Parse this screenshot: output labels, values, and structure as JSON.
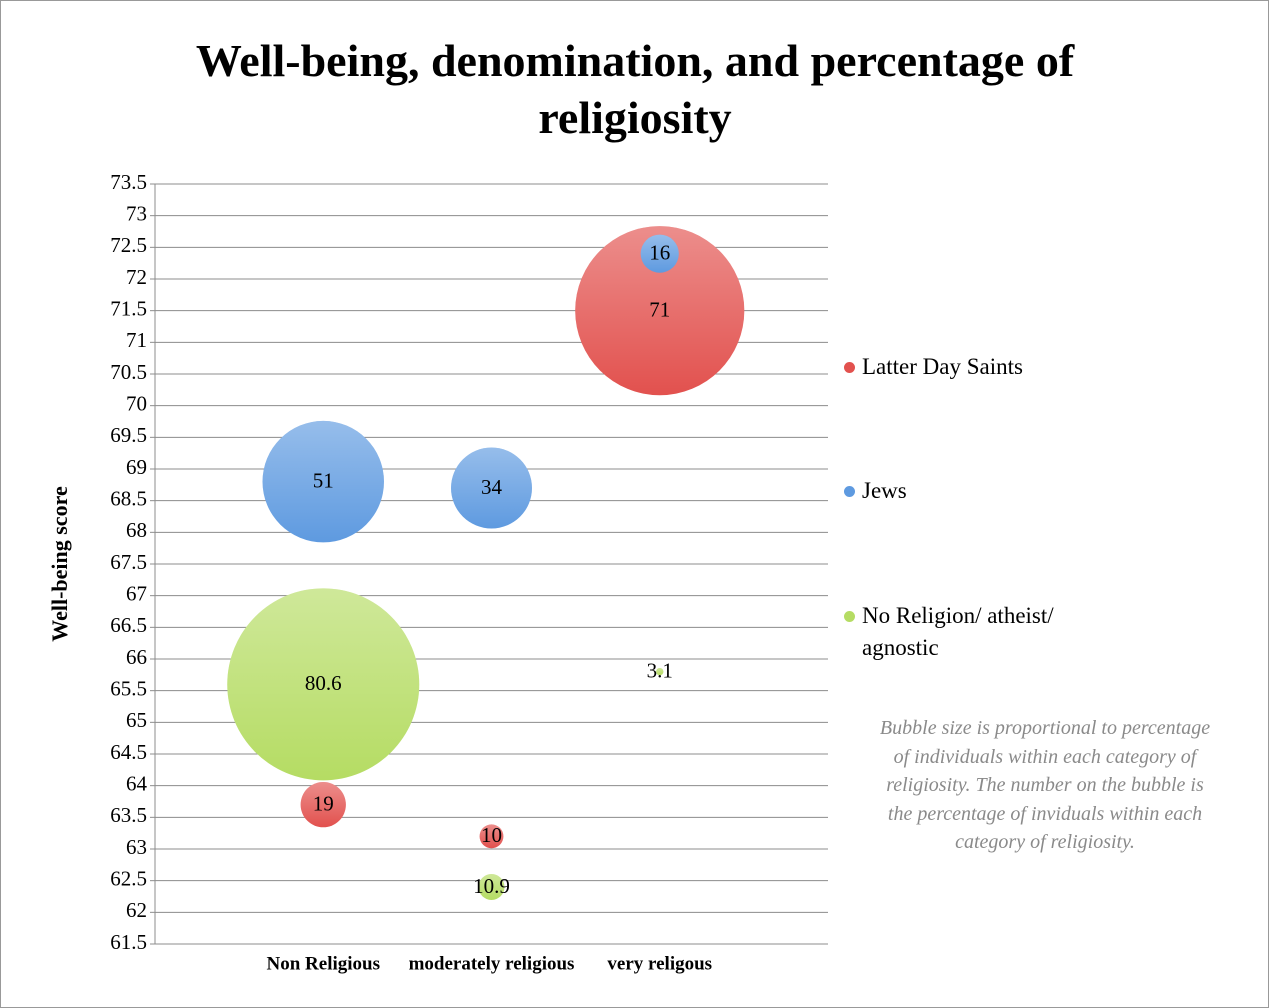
{
  "chart_data": {
    "type": "bubble",
    "title": "Well-being, denomination, and percentage of religiosity",
    "y_label": "Well-being score",
    "categories": [
      "Non Religious",
      "moderately religious",
      "very religous"
    ],
    "ylim": [
      61.5,
      73.5
    ],
    "yticks": [
      61.5,
      62,
      62.5,
      63,
      63.5,
      64,
      64.5,
      65,
      65.5,
      66,
      66.5,
      67,
      67.5,
      68,
      68.5,
      69,
      69.5,
      70,
      70.5,
      71,
      71.5,
      72,
      72.5,
      73,
      73.5
    ],
    "grid": true,
    "legend": "right",
    "series": [
      {
        "name": "Latter Day Saints",
        "color": "#e2514e",
        "values": [
          63.7,
          63.2,
          71.5
        ],
        "sizes": [
          19,
          10,
          71
        ]
      },
      {
        "name": "Jews",
        "color": "#5e9ae0",
        "values": [
          68.8,
          68.7,
          72.4
        ],
        "sizes": [
          51,
          34,
          16
        ]
      },
      {
        "name": "No Religion/ atheist/ agnostic",
        "color": "#b5dc63",
        "values": [
          65.6,
          62.4,
          65.8
        ],
        "sizes": [
          80.6,
          10.9,
          3.1
        ]
      }
    ],
    "annotation": "Bubble size is proportional to percentage of individuals within each category of religiosity. The number on the bubble is the percentage of inviduals within each category of religiosity."
  }
}
